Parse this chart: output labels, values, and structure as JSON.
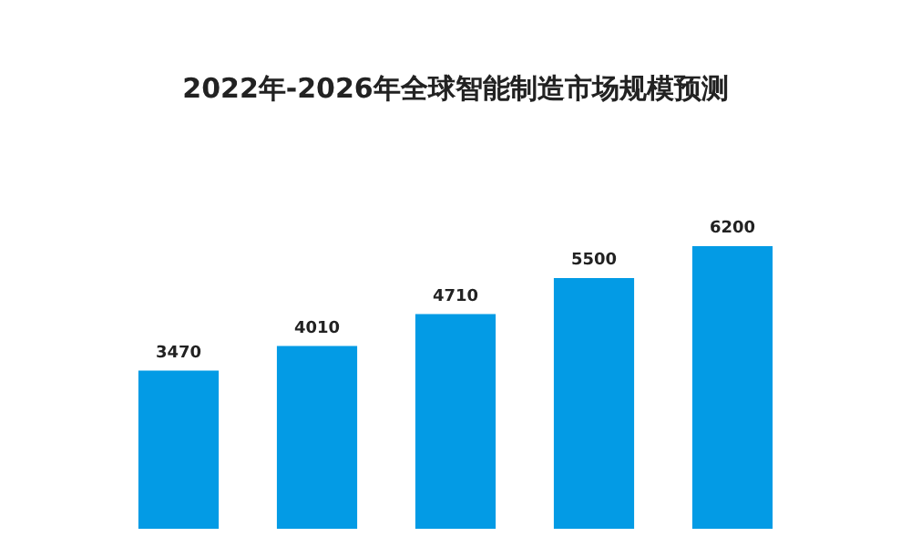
{
  "chart_data": {
    "type": "bar",
    "title": "2022年-2026年全球智能制造市场规模预测",
    "categories": [
      null,
      null,
      null,
      null,
      null
    ],
    "values": [
      3470,
      4010,
      4710,
      5500,
      6200
    ],
    "color": "#039be5",
    "data_labels": true,
    "tick_labels": false
  }
}
